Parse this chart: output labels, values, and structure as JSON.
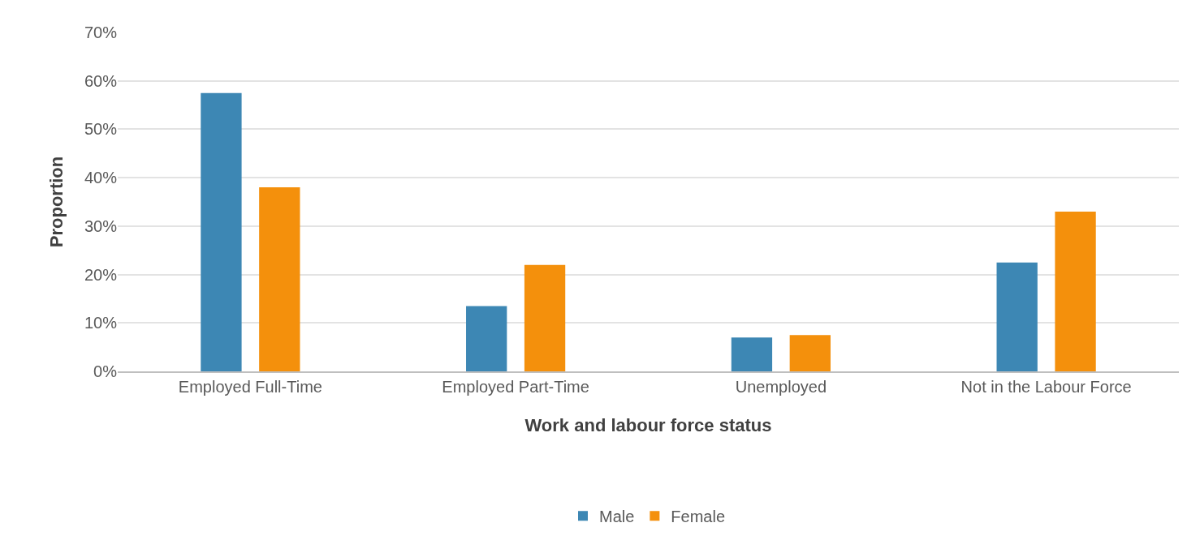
{
  "chart_data": {
    "type": "bar",
    "xlabel": "Work and labour force status",
    "ylabel": "Proportion",
    "categories": [
      "Employed Full-Time",
      "Employed Part-Time",
      "Unemployed",
      "Not in the Labour Force"
    ],
    "series": [
      {
        "name": "Male",
        "color": "#3d87b4",
        "values": [
          57.5,
          13.5,
          7,
          22.5
        ]
      },
      {
        "name": "Female",
        "color": "#f4900c",
        "values": [
          38,
          22,
          7.5,
          33
        ]
      }
    ],
    "ylim": [
      0,
      70
    ],
    "yticks": [
      {
        "value": 0,
        "label": "0%"
      },
      {
        "value": 10,
        "label": "10%"
      },
      {
        "value": 20,
        "label": "20%"
      },
      {
        "value": 30,
        "label": "30%"
      },
      {
        "value": 40,
        "label": "40%"
      },
      {
        "value": 50,
        "label": "50%"
      },
      {
        "value": 60,
        "label": "60%"
      },
      {
        "value": 70,
        "label": "70%"
      }
    ],
    "grid": "y",
    "legend": "bottom"
  }
}
